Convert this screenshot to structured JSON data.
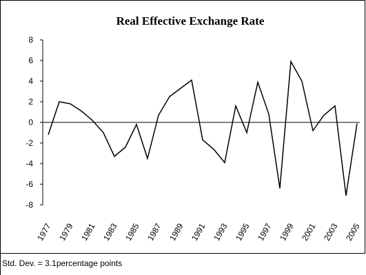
{
  "chart_data": {
    "type": "line",
    "title": "Real Effective Exchange Rate",
    "categories": [
      "1977",
      null,
      "1979",
      null,
      "1981",
      null,
      "1983",
      null,
      "1985",
      null,
      "1987",
      null,
      "1989",
      null,
      "1991",
      null,
      "1993",
      null,
      "1995",
      null,
      "1997",
      null,
      "1999",
      null,
      "2001",
      null,
      "2003",
      null,
      "2005"
    ],
    "series": [
      {
        "name": "Real Effective Exchange Rate",
        "color": "#000000",
        "values": [
          -1.2,
          2.0,
          1.8,
          1.1,
          0.2,
          -1.0,
          -3.3,
          -2.4,
          -0.2,
          -3.5,
          0.7,
          2.5,
          3.3,
          4.1,
          -1.7,
          -2.6,
          -3.9,
          1.6,
          -1.0,
          3.9,
          0.8,
          -6.4,
          5.9,
          4.0,
          -0.8,
          0.7,
          1.6,
          -7.1,
          -0.1
        ]
      }
    ],
    "ylim": [
      -8,
      8
    ],
    "yticks": [
      -8,
      -6,
      -4,
      -2,
      0,
      2,
      4,
      6,
      8
    ],
    "note": "Std. Dev. = 3.1percentage points"
  }
}
